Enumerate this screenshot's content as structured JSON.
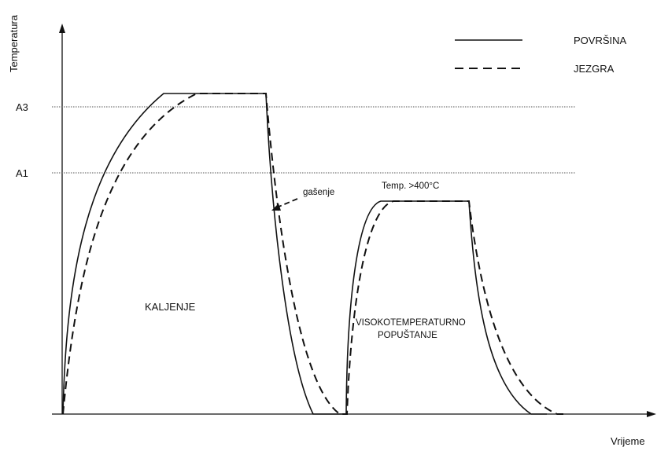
{
  "axes": {
    "y_label": "Temperatura",
    "x_label": "Vrijeme"
  },
  "levels": {
    "a3": "A3",
    "a1": "A1"
  },
  "legend": {
    "surface": "POVRŠINA",
    "core": "JEZGRA"
  },
  "annotations": {
    "quench": "gašenje",
    "temp_note": "Temp. >400°C",
    "hardening": "KALJENJE",
    "tempering_line1": "VISOKOTEMPERATURNO",
    "tempering_line2": "POPUŠTANJE"
  },
  "colors": {
    "line": "#111111",
    "reference_line": "#555555",
    "background": "#ffffff"
  }
}
